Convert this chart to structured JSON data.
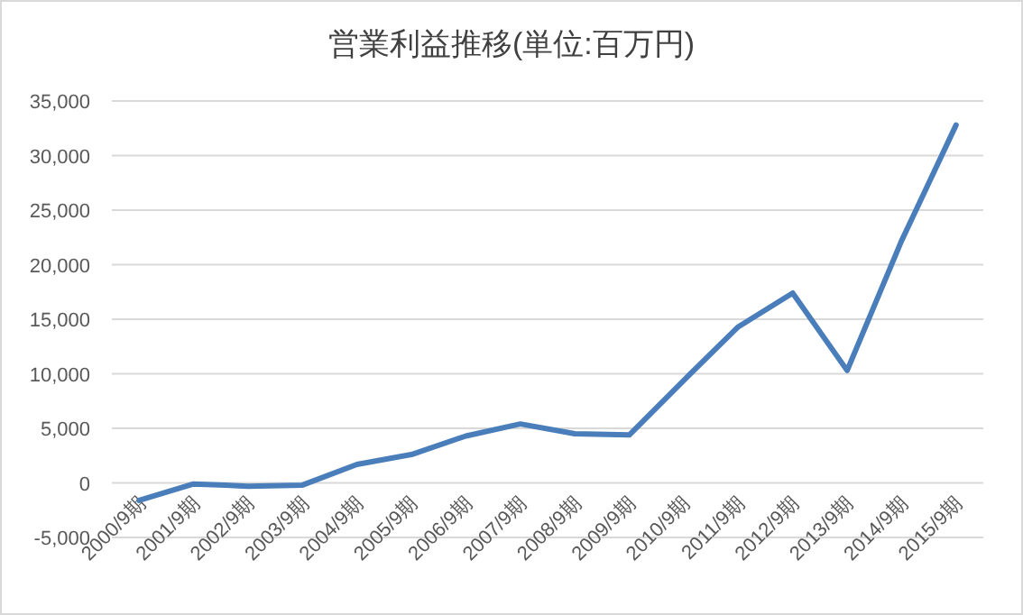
{
  "chart_data": {
    "type": "line",
    "title": "営業利益推移(単位:百万円)",
    "categories": [
      "2000/9期",
      "2001/9期",
      "2002/9期",
      "2003/9期",
      "2004/9期",
      "2005/9期",
      "2006/9期",
      "2007/9期",
      "2008/9期",
      "2009/9期",
      "2010/9期",
      "2011/9期",
      "2012/9期",
      "2013/9期",
      "2014/9期",
      "2015/9期"
    ],
    "series": [
      {
        "color": "#4a7ebb",
        "values": [
          -1600,
          -100,
          -300,
          -200,
          1700,
          2600,
          4300,
          5400,
          4500,
          4400,
          9400,
          14300,
          17400,
          10300,
          22200,
          32800
        ]
      }
    ],
    "ylim": [
      -5000,
      35000
    ],
    "yticks": [
      {
        "value": -5000,
        "label": "-5,000"
      },
      {
        "value": 0,
        "label": "0"
      },
      {
        "value": 5000,
        "label": "5,000"
      },
      {
        "value": 10000,
        "label": "10,000"
      },
      {
        "value": 15000,
        "label": "15,000"
      },
      {
        "value": 20000,
        "label": "20,000"
      },
      {
        "value": 25000,
        "label": "25,000"
      },
      {
        "value": 30000,
        "label": "30,000"
      },
      {
        "value": 35000,
        "label": "35,000"
      }
    ],
    "grid": "y",
    "marker": "none",
    "line_style": "solid"
  }
}
